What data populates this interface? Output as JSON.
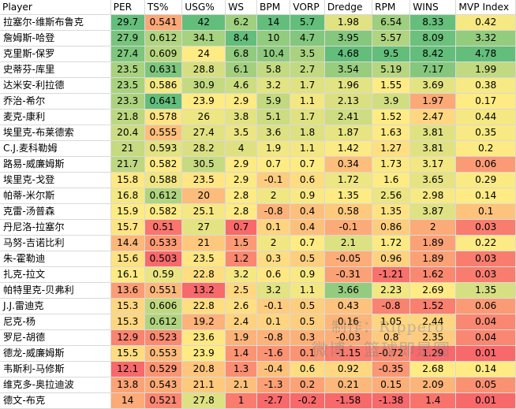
{
  "colors": {
    "scale_low": "#f8696b",
    "scale_mid": "#ffeb84",
    "scale_high": "#63be7b",
    "grid": "#d9d9d9"
  },
  "columns": [
    "Player",
    "PER",
    "TS%",
    "USG%",
    "WS",
    "BPM",
    "VORP",
    "Dredge",
    "RPM",
    "WINS",
    "MVP Index"
  ],
  "rows": [
    [
      "拉塞尔-维斯布鲁克",
      "29.7",
      "0.541",
      "42",
      "6.2",
      "14",
      "5.7",
      "1.98",
      "6.54",
      "8.33",
      "0.42"
    ],
    [
      "詹姆斯-哈登",
      "27.9",
      "0.612",
      "34.1",
      "8.4",
      "10",
      "4.7",
      "3.95",
      "5.57",
      "8.09",
      "3.32"
    ],
    [
      "克里斯-保罗",
      "27.4",
      "0.609",
      "24",
      "6.8",
      "10.4",
      "3.5",
      "4.68",
      "9.5",
      "8.42",
      "4.78"
    ],
    [
      "史蒂芬-库里",
      "23.5",
      "0.631",
      "28.8",
      "6.1",
      "5.8",
      "2.7",
      "3.54",
      "5.19",
      "7.17",
      "1.99"
    ],
    [
      "达米安-利拉德",
      "23.5",
      "0.586",
      "30.9",
      "4.6",
      "3.2",
      "1.7",
      "1.96",
      "1.55",
      "3.69",
      "0.38"
    ],
    [
      "乔治-希尔",
      "23.3",
      "0.641",
      "23.9",
      "2.9",
      "5.9",
      "1.1",
      "2.13",
      "3.9",
      "1.97",
      "0.17"
    ],
    [
      "麦克-康利",
      "21.8",
      "0.578",
      "26",
      "3.8",
      "5.1",
      "1.7",
      "2.41",
      "1.52",
      "2.47",
      "0.44"
    ],
    [
      "埃里克-布莱德索",
      "20.4",
      "0.555",
      "27.4",
      "3.5",
      "3.6",
      "1.8",
      "1.87",
      "1.63",
      "3.81",
      "0.35"
    ],
    [
      "C.J.麦科勒姆",
      "21",
      "0.593",
      "28.2",
      "4",
      "1.9",
      "1.1",
      "1.42",
      "1.27",
      "3.81",
      "0.2"
    ],
    [
      "路易-威廉姆斯",
      "21.7",
      "0.582",
      "30.5",
      "2.9",
      "0.7",
      "0.7",
      "0.34",
      "1.73",
      "3.17",
      "0.06"
    ],
    [
      "埃里克-戈登",
      "15.8",
      "0.588",
      "23.5",
      "2.9",
      "-0.1",
      "0.6",
      "1.72",
      "1.6",
      "3.65",
      "0.29"
    ],
    [
      "帕蒂-米尔斯",
      "16.8",
      "0.612",
      "20",
      "2.8",
      "2",
      "0.9",
      "1.35",
      "2.56",
      "2.98",
      "0.14"
    ],
    [
      "克雷-汤普森",
      "15.9",
      "0.582",
      "25.1",
      "2.8",
      "-0.8",
      "0.4",
      "0.58",
      "1.35",
      "3.87",
      "0.1"
    ],
    [
      "丹尼洛-拉塞尔",
      "15.7",
      "0.51",
      "27",
      "0.7",
      "0.1",
      "0.4",
      "-0.1",
      "0.86",
      "2",
      "0.03"
    ],
    [
      "马努-吉诺比利",
      "14.4",
      "0.533",
      "21",
      "1.5",
      "2",
      "0.7",
      "2.1",
      "1.72",
      "1.89",
      "0.22"
    ],
    [
      "朱-霍勒迪",
      "15.6",
      "0.503",
      "23.5",
      "1.2",
      "0.3",
      "0.5",
      "-0.05",
      "0.96",
      "1.89",
      "0.03"
    ],
    [
      "扎克-拉文",
      "16.1",
      "0.59",
      "22.8",
      "3.2",
      "0.6",
      "0.9",
      "-0.31",
      "-1.21",
      "1.62",
      "0.03"
    ],
    [
      "帕特里克-贝弗利",
      "13.6",
      "0.551",
      "13.2",
      "2.5",
      "3.2",
      "1.1",
      "3.66",
      "2.23",
      "2.69",
      "1.35"
    ],
    [
      "J.J.雷迪克",
      "15.3",
      "0.606",
      "22.8",
      "2.6",
      "-0.1",
      "0.5",
      "0.43",
      "-0.8",
      "1.52",
      "0.06"
    ],
    [
      "尼克-杨",
      "15.3",
      "0.612",
      "19.2",
      "2.4",
      "0.1",
      "0.5",
      "0.16",
      "1.05",
      "2.44",
      "0.04"
    ],
    [
      "罗尼-胡德",
      "12.9",
      "0.523",
      "23.6",
      "1.9",
      "-0.8",
      "0.3",
      "-0.03",
      "0.8",
      "2.35",
      "0.04"
    ],
    [
      "德龙-威廉姆斯",
      "15.5",
      "0.553",
      "23.9",
      "1.4",
      "-1.6",
      "0.1",
      "-1.15",
      "-0.72",
      "1.29",
      "0.01"
    ],
    [
      "韦斯利-马修斯",
      "12.1",
      "0.529",
      "20.8",
      "1.3",
      "-0.4",
      "0.6",
      "0.92",
      "-0.35",
      "2.68",
      "0.14"
    ],
    [
      "维克多-奥拉迪波",
      "13.8",
      "0.543",
      "21.1",
      "2.1",
      "-1.3",
      "0.2",
      "0.21",
      "0.15",
      "2.09",
      "0.05"
    ],
    [
      "德文-布克",
      "14",
      "0.521",
      "27.8",
      "1",
      "-2.7",
      "-0.2",
      "-1.58",
      "-1.38",
      "1.4",
      "0.01"
    ]
  ],
  "watermark": {
    "line1": "制作：Rippero",
    "line2": "微博：篮球即是圆"
  }
}
